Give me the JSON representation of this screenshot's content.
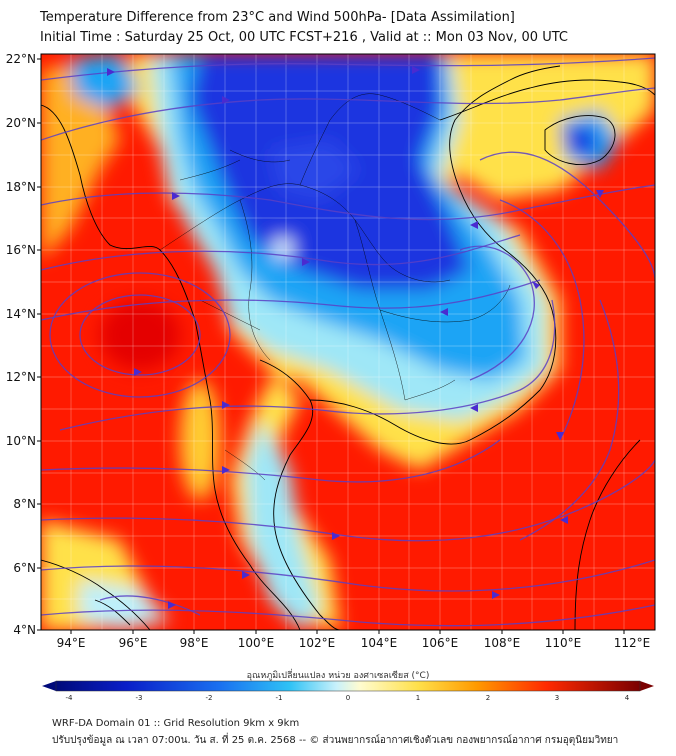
{
  "title_line1": "Temperature Difference from 23°C and Wind 500hPa- [Data Assimilation]",
  "title_line2": "Initial Time : Saturday 25 Oct, 00 UTC FCST+216 , Valid at ::  Mon 03 Nov, 00 UTC",
  "lat_labels": [
    "22°N",
    "20°N",
    "18°N",
    "16°N",
    "14°N",
    "12°N",
    "10°N",
    "8°N",
    "6°N",
    "4°N"
  ],
  "lon_labels": [
    "94°E",
    "96°E",
    "98°E",
    "100°E",
    "102°E",
    "104°E",
    "106°E",
    "108°E",
    "110°E",
    "112°E"
  ],
  "colorbar_label": "อุณหภูมิเปลี่ยนแปลง หน่วย องศาเซลเซียส (°C)",
  "colorbar_ticks": [
    "-4",
    "-3",
    "-2",
    "-1",
    "0",
    "1",
    "2",
    "3",
    "4"
  ],
  "footer_line1": "WRF-DA Domain 01 :: Grid Resolution 9km x 9km",
  "footer_line2": "ปรับปรุงข้อมูล ณ เวลา 07:00น. วัน ส. ที่ 25 ต.ค. 2568 -- © ส่วนพยากรณ์อากาศเชิงตัวเลข กองพยากรณ์อากาศ กรมอุตุนิยมวิทยา",
  "colors": {
    "warm": "#ff1a00",
    "warm_mid": "#ff8a00",
    "neutral_light": "#ffe98a",
    "cool_light": "#9fe7f7",
    "cool": "#1aa4f5",
    "cold": "#1c34e0",
    "streamline": "#5b3fc4"
  }
}
